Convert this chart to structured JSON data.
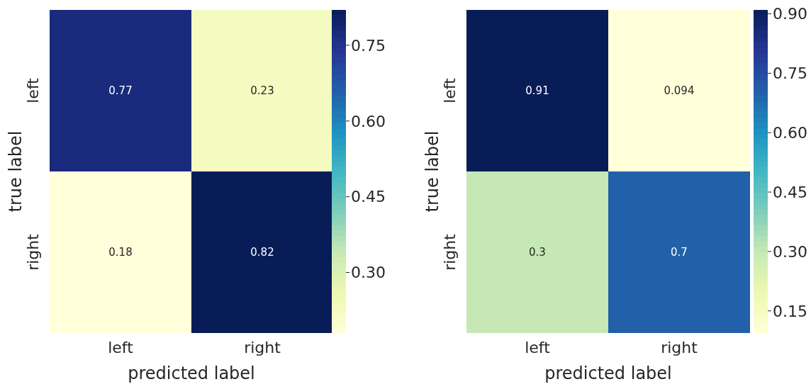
{
  "chart_data": [
    {
      "type": "heatmap",
      "xlabel": "predicted label",
      "ylabel": "true label",
      "categories": [
        "left",
        "right"
      ],
      "y_categories": [
        "left",
        "right"
      ],
      "cells": [
        [
          0.77,
          0.23
        ],
        [
          0.18,
          0.82
        ]
      ],
      "data_labels": true,
      "clim": [
        0.18,
        0.82
      ],
      "cticks": [
        {
          "value": 0.3,
          "label": "0.30"
        },
        {
          "value": 0.45,
          "label": "0.45"
        },
        {
          "value": 0.6,
          "label": "0.60"
        },
        {
          "value": 0.75,
          "label": "0.75"
        }
      ]
    },
    {
      "type": "heatmap",
      "xlabel": "predicted label",
      "ylabel": "true label",
      "categories": [
        "left",
        "right"
      ],
      "y_categories": [
        "left",
        "right"
      ],
      "cells": [
        [
          0.91,
          0.094
        ],
        [
          0.3,
          0.7
        ]
      ],
      "data_labels": true,
      "clim": [
        0.094,
        0.91
      ],
      "cticks": [
        {
          "value": 0.15,
          "label": "0.15"
        },
        {
          "value": 0.3,
          "label": "0.30"
        },
        {
          "value": 0.45,
          "label": "0.45"
        },
        {
          "value": 0.6,
          "label": "0.60"
        },
        {
          "value": 0.75,
          "label": "0.75"
        },
        {
          "value": 0.9,
          "label": "0.90"
        }
      ]
    }
  ]
}
